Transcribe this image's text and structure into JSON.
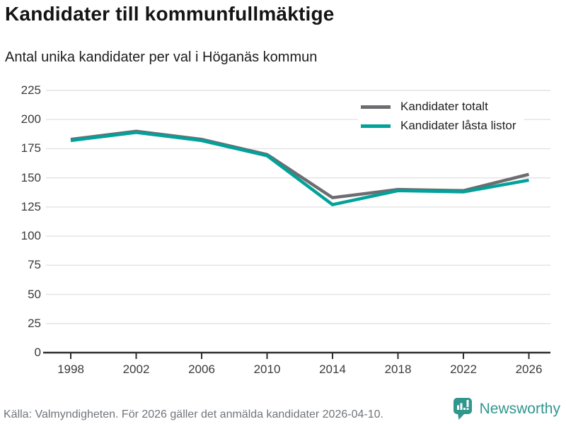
{
  "header": {
    "title": "Kandidater till kommunfullmäktige",
    "subtitle": "Antal unika kandidater per val i Höganäs kommun"
  },
  "chart_data": {
    "type": "line",
    "title": "Kandidater till kommunfullmäktige",
    "subtitle": "Antal unika kandidater per val i Höganäs kommun",
    "categories": [
      "1998",
      "2002",
      "2006",
      "2010",
      "2014",
      "2018",
      "2022",
      "2026"
    ],
    "series": [
      {
        "name": "Kandidater totalt",
        "color": "#6d6c71",
        "values": [
          183,
          190,
          183,
          170,
          133,
          140,
          139,
          153
        ]
      },
      {
        "name": "Kandidater låsta listor",
        "color": "#00a29a",
        "values": [
          182,
          189,
          182,
          169,
          127,
          139,
          138,
          148
        ]
      }
    ],
    "xlabel": "",
    "ylabel": "",
    "ylim": [
      0,
      225
    ],
    "yticks": [
      0,
      25,
      50,
      75,
      100,
      125,
      150,
      175,
      200,
      225
    ],
    "grid": "horizontal",
    "legend_position": "top-right",
    "colors": {
      "grid": "#e2e2e2",
      "axis": "#2d2d2d",
      "tick_label": "#3a3a3a"
    }
  },
  "footer": {
    "source": "Källa: Valmyndigheten. För 2026 gäller det anmälda kandidater 2026-04-10.",
    "brand": "Newsworthy",
    "brand_color": "#31968e"
  }
}
